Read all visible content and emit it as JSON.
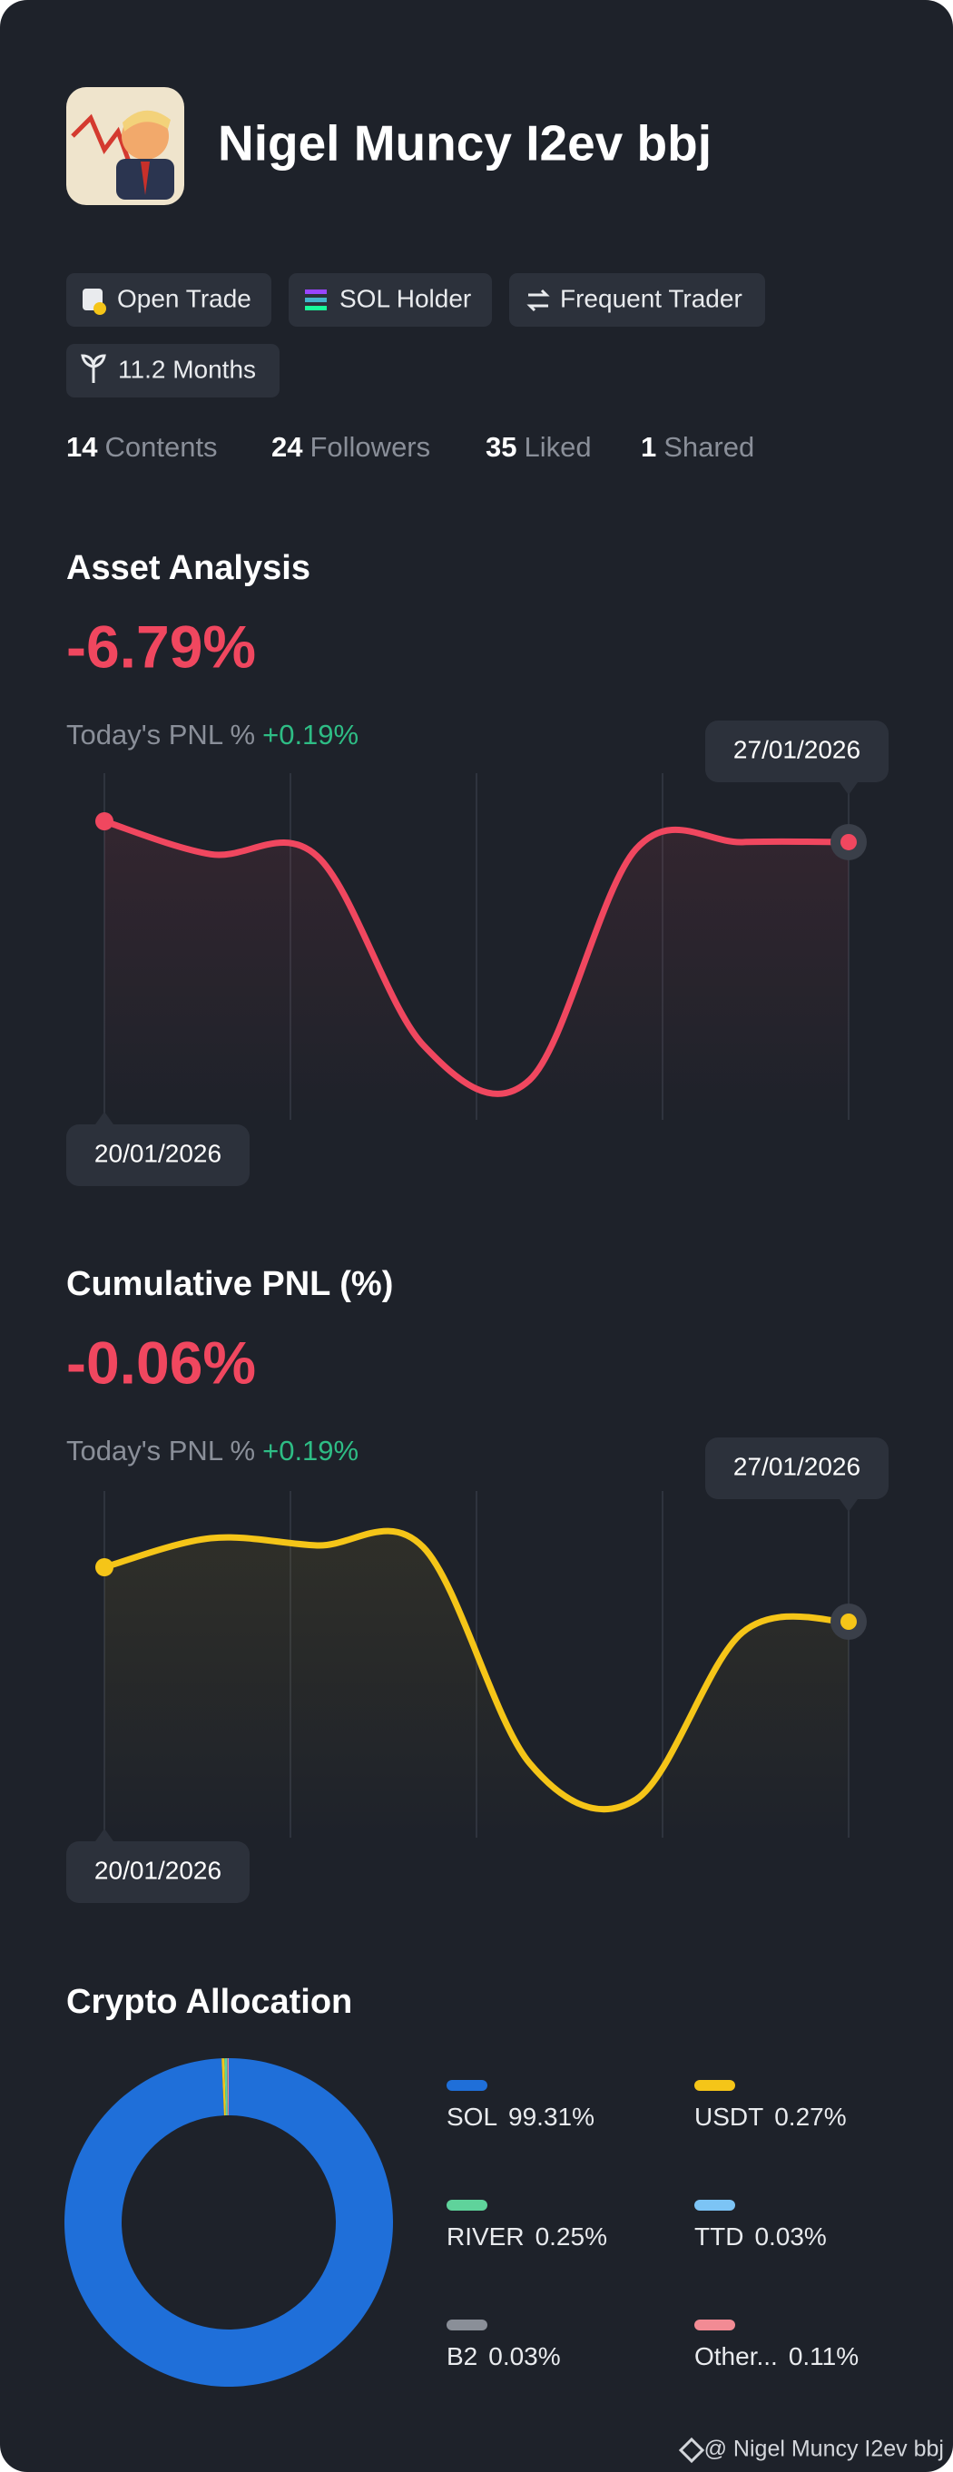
{
  "profile": {
    "name": "Nigel Muncy I2ev bbj",
    "badges": [
      "Open Trade",
      "SOL Holder",
      "Frequent Trader",
      "11.2 Months"
    ],
    "stats": [
      {
        "value": 14,
        "label": "Contents"
      },
      {
        "value": 24,
        "label": "Followers"
      },
      {
        "value": 35,
        "label": "Liked"
      },
      {
        "value": 1,
        "label": "Shared"
      }
    ]
  },
  "chart_data": [
    {
      "type": "line",
      "title": "Asset Analysis",
      "headline": "-6.79%",
      "today_label": "Today's PNL %",
      "today_value": "+0.19%",
      "categories": [
        "20/01/2026",
        null,
        null,
        null,
        null,
        null,
        null,
        "27/01/2026"
      ],
      "values": [
        1.0,
        0.05,
        0,
        -5.45,
        -6.45,
        0.2,
        0.4,
        0.4
      ],
      "color": "#f0475f",
      "grid": true
    },
    {
      "type": "line",
      "title": "Cumulative PNL (%)",
      "headline": "-0.06%",
      "today_label": "Today's PNL %",
      "today_value": "+0.19%",
      "categories": [
        "20/01/2026",
        null,
        null,
        null,
        null,
        null,
        null,
        "27/01/2026"
      ],
      "values": [
        -0.55,
        0.25,
        0.05,
        0,
        -5.95,
        -6.95,
        -2.35,
        -2.05
      ],
      "color": "#f5c518",
      "grid": true
    },
    {
      "type": "pie",
      "title": "Crypto Allocation",
      "categories": [
        "SOL",
        "USDT",
        "RIVER",
        "TTD",
        "B2",
        "Other..."
      ],
      "values": [
        99.31,
        0.27,
        0.25,
        0.03,
        0.03,
        0.11
      ],
      "value_labels": [
        "99.31%",
        "0.27%",
        "0.25%",
        "0.03%",
        "0.03%",
        "0.11%"
      ],
      "colors": [
        "#1f6fd9",
        "#f5c518",
        "#5fd39b",
        "#7cc4f5",
        "#8a8f98",
        "#f28b94"
      ]
    }
  ],
  "footer": "@ Nigel Muncy I2ev bbj"
}
